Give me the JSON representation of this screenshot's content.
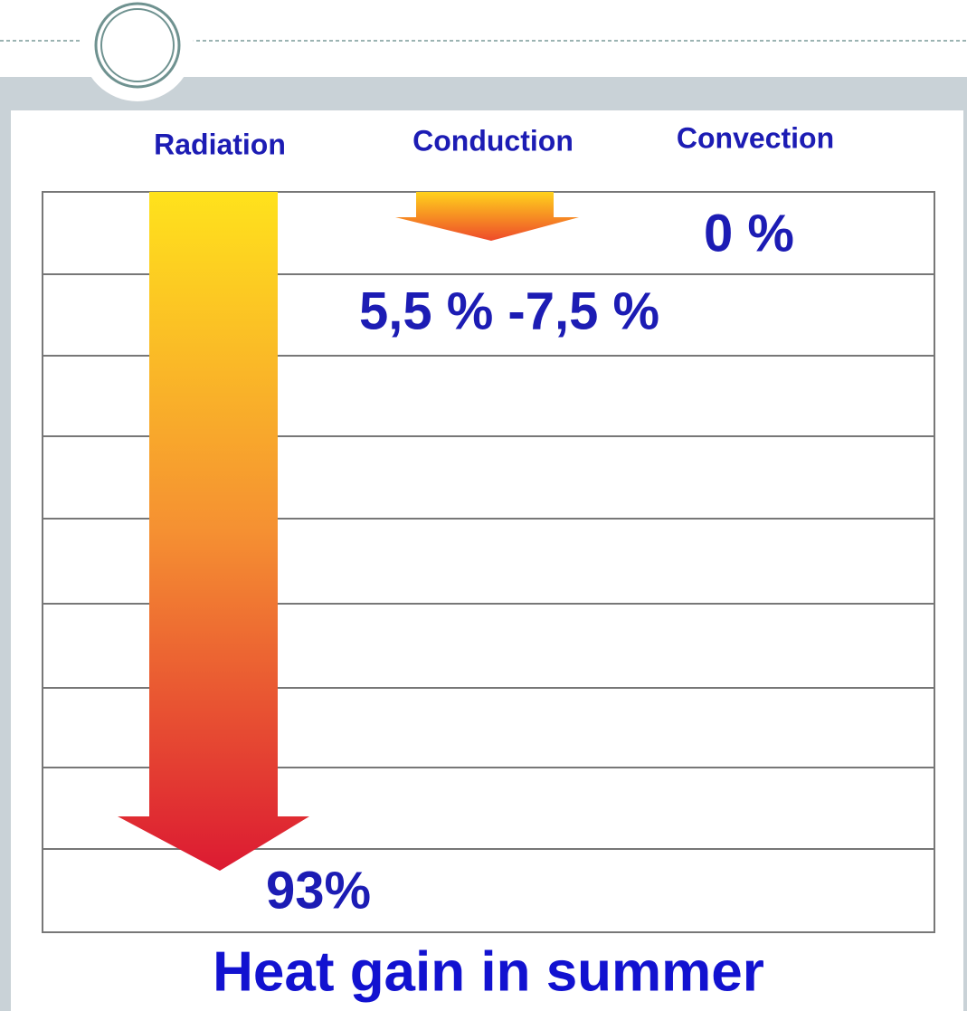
{
  "labels": {
    "radiation": "Radiation",
    "conduction": "Conduction",
    "convection": "Convection"
  },
  "values": {
    "convection": "0 %",
    "conduction": "5,5 % -7,5 %",
    "radiation": "93%"
  },
  "caption": "Heat gain in summer"
}
